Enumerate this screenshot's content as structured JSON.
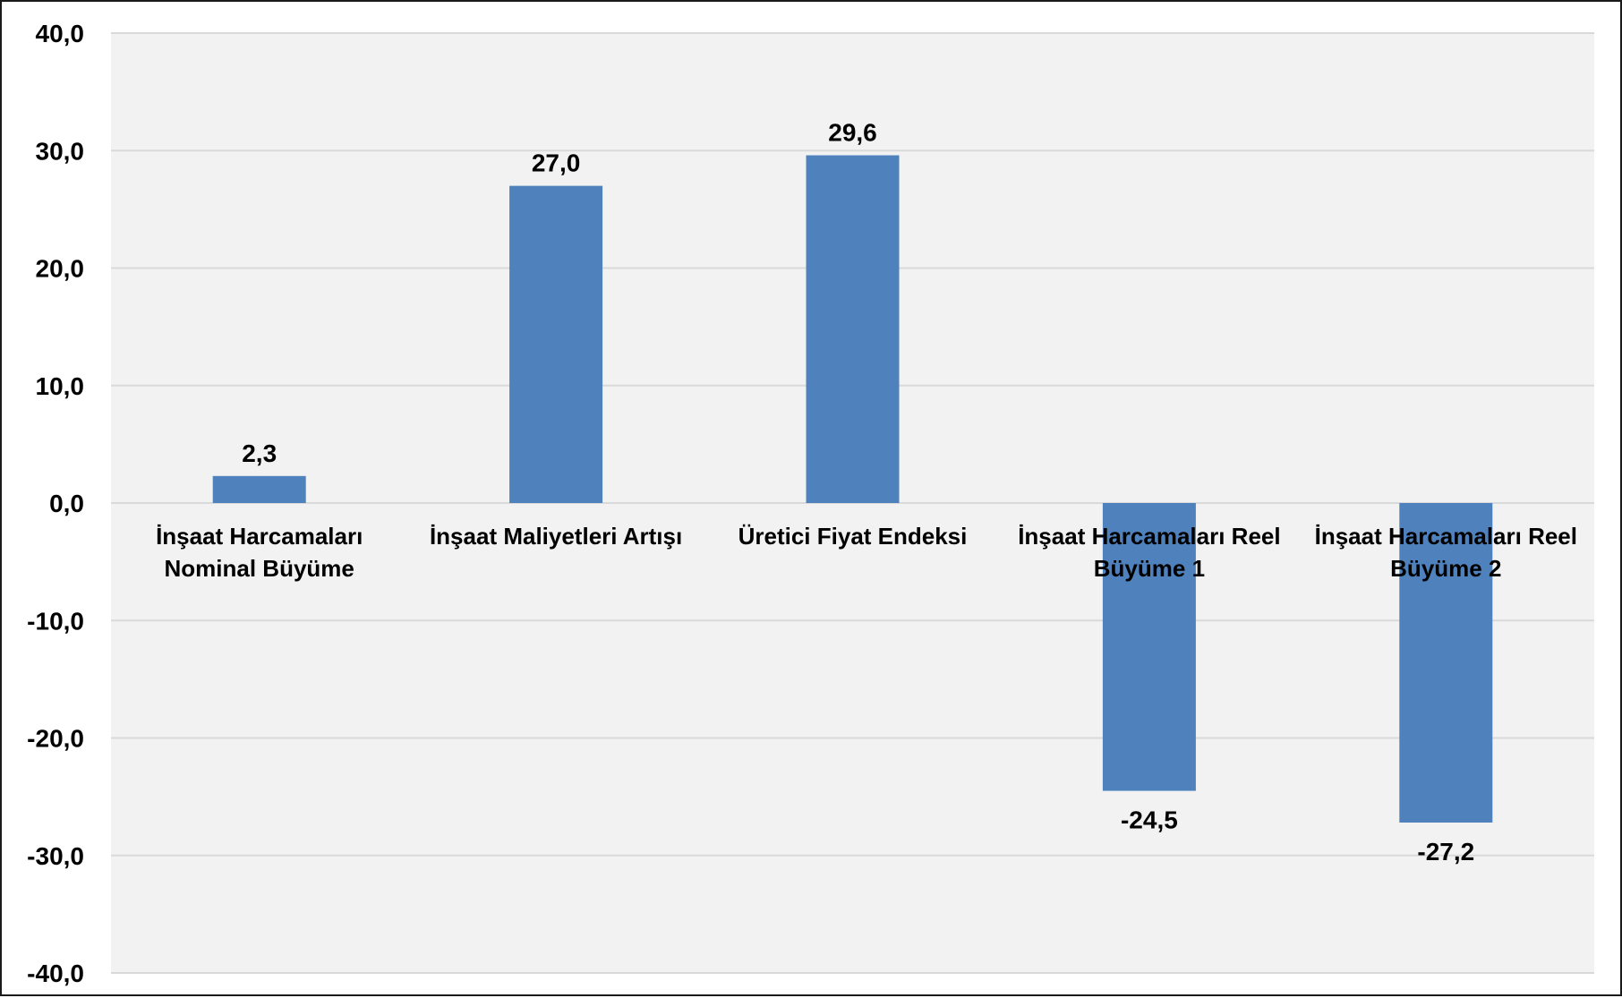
{
  "chart_data": {
    "type": "bar",
    "categories": [
      [
        "İnşaat Harcamaları",
        "Nominal Büyüme"
      ],
      [
        "İnşaat Maliyetleri Artışı"
      ],
      [
        "Üretici Fiyat Endeksi"
      ],
      [
        "İnşaat Harcamaları Reel",
        "Büyüme 1"
      ],
      [
        "İnşaat Harcamaları Reel",
        "Büyüme 2"
      ]
    ],
    "values": [
      2.3,
      27.0,
      29.6,
      -24.5,
      -27.2
    ],
    "data_labels": [
      "2,3",
      "27,0",
      "29,6",
      "-24,5",
      "-27,2"
    ],
    "ylim": [
      -40,
      40
    ],
    "yticks": [
      40,
      30,
      20,
      10,
      0,
      -10,
      -20,
      -30,
      -40
    ],
    "ytick_labels": [
      "40,0",
      "30,0",
      "20,0",
      "10,0",
      "0,0",
      "-10,0",
      "-20,0",
      "-30,0",
      "-40,0"
    ],
    "grid": true,
    "colors": {
      "bar": "#4F81BD",
      "plot_background": "#F2F2F2",
      "gridline": "#D9D9D9",
      "text": "#000000"
    }
  }
}
